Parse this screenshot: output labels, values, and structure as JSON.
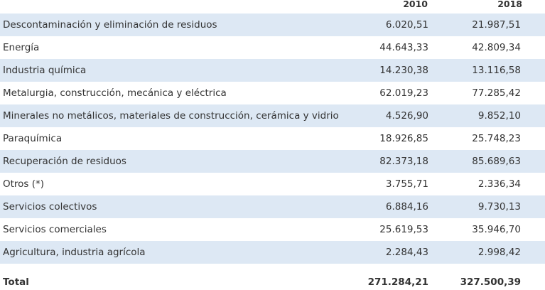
{
  "table": {
    "columns": [
      "",
      "2010",
      "2018"
    ],
    "rows": [
      {
        "label": "Descontaminación y eliminación de residuos",
        "v2010": "6.020,51",
        "v2018": "21.987,51"
      },
      {
        "label": "Energía",
        "v2010": "44.643,33",
        "v2018": "42.809,34"
      },
      {
        "label": "Industria química",
        "v2010": "14.230,38",
        "v2018": "13.116,58"
      },
      {
        "label": "Metalurgia, construcción, mecánica y eléctrica",
        "v2010": "62.019,23",
        "v2018": "77.285,42"
      },
      {
        "label": "Minerales no metálicos, materiales de construcción, cerámica y vidrio",
        "v2010": "4.526,90",
        "v2018": "9.852,10"
      },
      {
        "label": "Paraquímica",
        "v2010": "18.926,85",
        "v2018": "25.748,23"
      },
      {
        "label": "Recuperación de residuos",
        "v2010": "82.373,18",
        "v2018": "85.689,63"
      },
      {
        "label": "Otros (*)",
        "v2010": "3.755,71",
        "v2018": "2.336,34"
      },
      {
        "label": "Servicios colectivos",
        "v2010": "6.884,16",
        "v2018": "9.730,13"
      },
      {
        "label": "Servicios comerciales",
        "v2010": "25.619,53",
        "v2018": "35.946,70"
      },
      {
        "label": "Agricultura, industria agrícola",
        "v2010": "2.284,43",
        "v2018": "2.998,42"
      }
    ],
    "total": {
      "label": "Total",
      "v2010": "271.284,21",
      "v2018": "327.500,39"
    }
  },
  "colors": {
    "row_shade": "#dde8f4",
    "text": "#333333"
  }
}
